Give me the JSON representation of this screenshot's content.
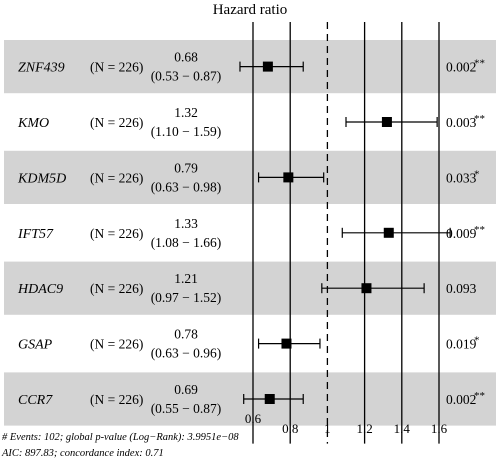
{
  "chart_data": {
    "type": "forest",
    "title": "Hazard ratio",
    "xlim": [
      0.6,
      1.6
    ],
    "reference_line": 1,
    "x_ticks": [
      0.6,
      0.8,
      1,
      1.2,
      1.4,
      1.6
    ],
    "x_tick_labels": [
      "0.6",
      "0.8",
      "1",
      "1.2",
      "1.4",
      "1.6"
    ],
    "row_colors": [
      "#d3d3d3",
      "#ffffff"
    ],
    "rows": [
      {
        "gene": "ZNF439",
        "n_label": "(N = 226)",
        "hr": 0.68,
        "lower": 0.53,
        "upper": 0.87,
        "hr_text": "0.68",
        "ci_text": "(0.53 − 0.87)",
        "p_text": "0.002",
        "sig": "**"
      },
      {
        "gene": "KMO",
        "n_label": "(N = 226)",
        "hr": 1.32,
        "lower": 1.1,
        "upper": 1.59,
        "hr_text": "1.32",
        "ci_text": "(1.10 − 1.59)",
        "p_text": "0.003",
        "sig": "**"
      },
      {
        "gene": "KDM5D",
        "n_label": "(N = 226)",
        "hr": 0.79,
        "lower": 0.63,
        "upper": 0.98,
        "hr_text": "0.79",
        "ci_text": "(0.63 − 0.98)",
        "p_text": "0.033",
        "sig": "*"
      },
      {
        "gene": "IFT57",
        "n_label": "(N = 226)",
        "hr": 1.33,
        "lower": 1.08,
        "upper": 1.66,
        "hr_text": "1.33",
        "ci_text": "(1.08 − 1.66)",
        "p_text": "0.009",
        "sig": "**"
      },
      {
        "gene": "HDAC9",
        "n_label": "(N = 226)",
        "hr": 1.21,
        "lower": 0.97,
        "upper": 1.52,
        "hr_text": "1.21",
        "ci_text": "(0.97 − 1.52)",
        "p_text": "0.093",
        "sig": ""
      },
      {
        "gene": "GSAP",
        "n_label": "(N = 226)",
        "hr": 0.78,
        "lower": 0.63,
        "upper": 0.96,
        "hr_text": "0.78",
        "ci_text": "(0.63 − 0.96)",
        "p_text": "0.019",
        "sig": "*"
      },
      {
        "gene": "CCR7",
        "n_label": "(N = 226)",
        "hr": 0.69,
        "lower": 0.55,
        "upper": 0.87,
        "hr_text": "0.69",
        "ci_text": "(0.55 − 0.87)",
        "p_text": "0.002",
        "sig": "**"
      }
    ],
    "footnote_line1": "# Events: 102; global p-value (Log−Rank): 3.9951e−08",
    "footnote_line2": "AIC: 897.83; concordance index: 0.71"
  }
}
